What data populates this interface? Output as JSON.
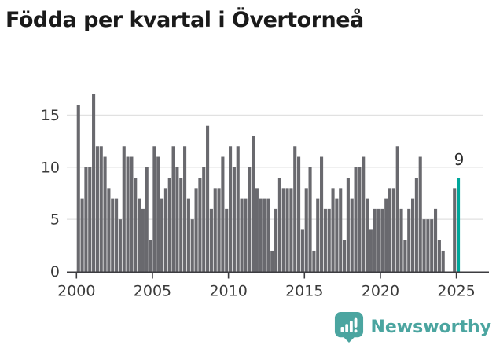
{
  "title": "Födda per kvartal i Övertorneå",
  "annotation": {
    "label": "9"
  },
  "footer": {
    "brand": "Newsworthy",
    "logo_icon": "bar-chart-pin-icon"
  },
  "colors": {
    "bar": "#69696e",
    "highlight": "#00a79b",
    "axis": "#3c3c40",
    "tick_label": "#3a3a3a",
    "gridline": "#e1e1e1",
    "title": "#1a1a1a",
    "annotation": "#2d2d2d",
    "brand": "#4ba5a0"
  },
  "chart_data": {
    "type": "bar",
    "title": "Födda per kvartal i Övertorneå",
    "x_start": "2000-Q1",
    "x_end": "2025-Q1",
    "x_unit": "quarter",
    "x_tick_labels": [
      "2000",
      "2005",
      "2010",
      "2015",
      "2020",
      "2025"
    ],
    "y_ticks": [
      0,
      5,
      10,
      15
    ],
    "ylim": [
      0,
      17.5
    ],
    "grid": "horizontal",
    "legend": "none",
    "highlight_last_bar": true,
    "last_value_label": "9",
    "series": [
      {
        "name": "Födda per kvartal",
        "values": [
          16,
          7,
          10,
          10,
          17,
          12,
          12,
          11,
          8,
          7,
          7,
          5,
          12,
          11,
          11,
          9,
          7,
          6,
          10,
          3,
          12,
          11,
          7,
          8,
          9,
          12,
          10,
          9,
          12,
          7,
          5,
          8,
          9,
          10,
          14,
          6,
          8,
          8,
          11,
          6,
          12,
          10,
          12,
          7,
          7,
          10,
          13,
          8,
          7,
          7,
          7,
          2,
          6,
          9,
          8,
          8,
          8,
          12,
          11,
          4,
          8,
          10,
          2,
          7,
          11,
          6,
          6,
          8,
          7,
          8,
          3,
          9,
          7,
          10,
          10,
          11,
          7,
          4,
          6,
          6,
          6,
          7,
          8,
          8,
          12,
          6,
          3,
          6,
          7,
          9,
          11,
          5,
          5,
          5,
          6,
          3,
          2,
          0,
          0,
          8,
          9
        ]
      }
    ]
  }
}
